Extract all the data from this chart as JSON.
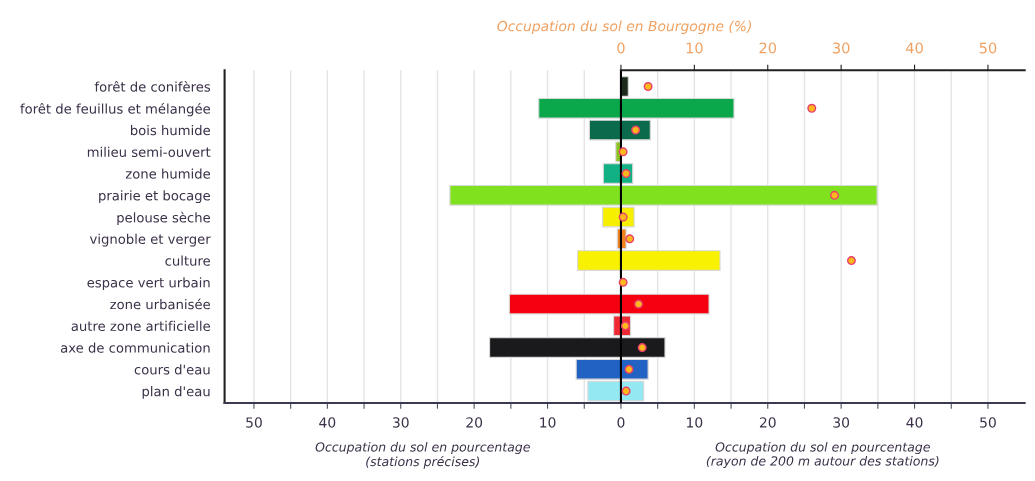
{
  "chart_data": {
    "type": "bar",
    "orientation": "horizontal",
    "stacked": true,
    "categories": [
      "forêt de conifères",
      "forêt de feuillus et mélangée",
      "bois humide",
      "milieu semi-ouvert",
      "zone humide",
      "prairie et bocage",
      "pelouse sèche",
      "vignoble et verger",
      "culture",
      "espace vert urbain",
      "zone urbanisée",
      "autre zone artificielle",
      "axe de communication",
      "cours d'eau",
      "plan d'eau"
    ],
    "series": [
      {
        "values": [
          null,
          -11.2,
          -4.3,
          -0.7,
          -2.4,
          -23.3,
          -2.5,
          -0.5,
          -5.9,
          null,
          -15.2,
          -1.0,
          -17.9,
          -6.1,
          -4.5
        ],
        "colors": [
          "#1c2a1e",
          "#0aa84a",
          "#0b6a4c",
          "#8cc424",
          "#12b184",
          "#80e21e",
          "#f6f000",
          "#f08220",
          "#f8f200",
          "#2a6a2a",
          "#f40010",
          "#f02834",
          "#1a1a1c",
          "#2262c2",
          "#94e8f2"
        ]
      },
      {
        "values": [
          1.0,
          15.4,
          4.0,
          null,
          1.6,
          34.9,
          1.8,
          0.7,
          13.5,
          null,
          12.0,
          1.3,
          6.0,
          3.7,
          3.1
        ],
        "colors": [
          "#1c2a1e",
          "#0aa84a",
          "#0b6a4c",
          "#8cc424",
          "#12b184",
          "#80e21e",
          "#f6f000",
          "#f08220",
          "#f8f200",
          "#2a6a2a",
          "#f40010",
          "#f02834",
          "#1a1a1c",
          "#2262c2",
          "#94e8f2"
        ]
      },
      {
        "type": "scatter",
        "axis": "x2",
        "color": "#ffb81c",
        "values": [
          3.7,
          26.0,
          2.0,
          0.3,
          0.7,
          29.1,
          0.3,
          1.2,
          31.4,
          0.3,
          2.4,
          0.6,
          2.9,
          1.1,
          0.7
        ]
      }
    ],
    "marker": "circle",
    "xlim": [
      -54,
      55
    ],
    "xticks": [
      {
        "value": -50,
        "label": "50"
      },
      {
        "value": -45,
        "label": null
      },
      {
        "value": -40,
        "label": "40"
      },
      {
        "value": -35,
        "label": null
      },
      {
        "value": -30,
        "label": "30"
      },
      {
        "value": -25,
        "label": null
      },
      {
        "value": -20,
        "label": "20"
      },
      {
        "value": -15,
        "label": null
      },
      {
        "value": -10,
        "label": "10"
      },
      {
        "value": -5,
        "label": null
      },
      0,
      {
        "value": 5,
        "label": null
      },
      10,
      {
        "value": 15,
        "label": null
      },
      20,
      {
        "value": 25,
        "label": null
      },
      30,
      {
        "value": 35,
        "label": null
      },
      40,
      {
        "value": 45,
        "label": null
      },
      50
    ],
    "x2lim": [
      -54,
      55
    ],
    "x2ticks": [
      0,
      10,
      20,
      30,
      40,
      50
    ],
    "x2label": "Occupation du sol en Bourgogne (%)",
    "grid": "x",
    "ref_lines": [
      {
        "axis": "x",
        "value": 0,
        "color": "#000000"
      }
    ],
    "annotations": [
      "Occupation du sol en pourcentage\n(stations précises)",
      "Occupation du sol en pourcentage\n(rayon de 200 m autour des stations)"
    ]
  }
}
